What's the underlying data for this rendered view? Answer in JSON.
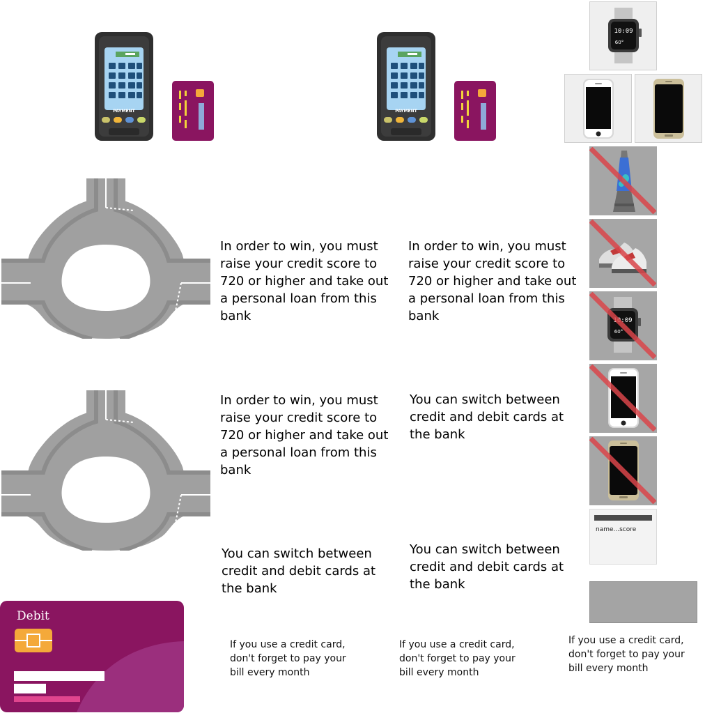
{
  "texts": {
    "win_goal_1": "In order to win, you must\nraise your credit score to\n720 or higher and take out\na personal loan from this\nbank",
    "win_goal_2": "In order to win, you must\nraise your credit score to\n720 or higher and take out\na personal loan from this\nbank",
    "win_goal_3": "In order to win, you must\nraise your credit score to\n720 or higher and take out\na personal loan from this\nbank",
    "switch_1": "You can switch between\ncredit and debit cards at\nthe bank",
    "switch_2": "You can switch between\ncredit and debit cards at\nthe bank",
    "switch_3": "You can switch between\ncredit and debit cards at\nthe bank",
    "pay_bill_1": "If you use a credit card,\ndon't forget to pay your\nbill every month",
    "pay_bill_2": "If you use a credit card,\ndon't forget to pay your\nbill every month",
    "pay_bill_3": "If you use a credit card,\ndon't forget to pay your\nbill every month"
  },
  "payment_terminal": {
    "label": "PAYMENT"
  },
  "debit_card": {
    "label": "Debit"
  },
  "score_window": {
    "text": "name...score"
  },
  "items": [
    {
      "name": "smartwatch",
      "crossed": false,
      "time": "10:09",
      "temp": "60°"
    },
    {
      "name": "white-smartphone",
      "crossed": false
    },
    {
      "name": "gold-smartphone",
      "crossed": false
    },
    {
      "name": "lava-lamp",
      "crossed": true
    },
    {
      "name": "sneakers",
      "crossed": true
    },
    {
      "name": "smartwatch",
      "crossed": true,
      "time": "10:09",
      "temp": "60°"
    },
    {
      "name": "white-smartphone",
      "crossed": true
    },
    {
      "name": "gold-smartphone",
      "crossed": true
    }
  ],
  "colors": {
    "card_purple": "#8a1560",
    "card_magenta": "#9b2f7d",
    "road_gray": "#9a9a9a",
    "strike_red": "#d9454a",
    "chip_gold": "#f4a93a"
  }
}
